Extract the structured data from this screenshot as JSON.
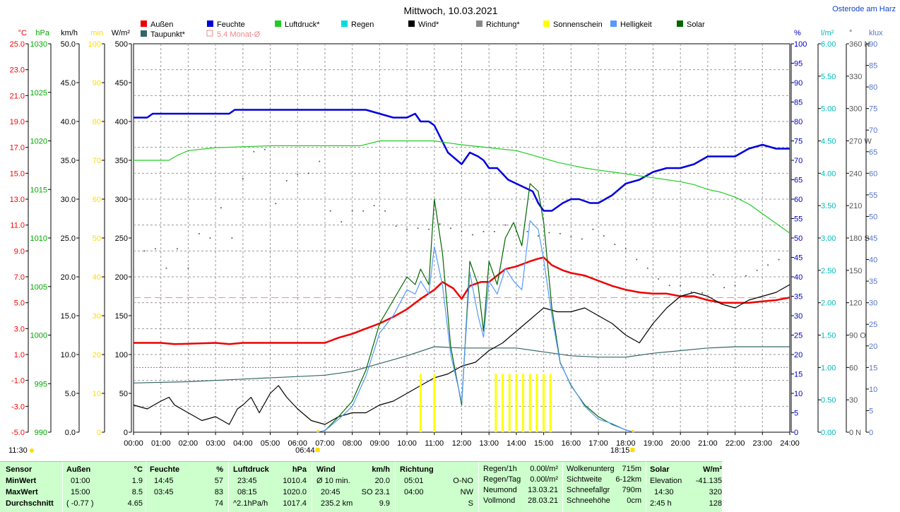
{
  "title": "Mittwoch, 10.03.2021",
  "location": "Osterode am Harz",
  "legend": [
    {
      "label": "Außen",
      "color": "#ee0000"
    },
    {
      "label": "Taupunkt*",
      "color": "#336666"
    },
    {
      "label": "Feuchte",
      "color": "#0000dd"
    },
    {
      "label": "5.4 Monat-Ø",
      "color": "#ee8888",
      "hollow": true
    },
    {
      "label": "Luftdruck*",
      "color": "#22cc22"
    },
    {
      "label": "Regen",
      "color": "#00dddd"
    },
    {
      "label": "Wind*",
      "color": "#000000"
    },
    {
      "label": "Richtung*",
      "color": "#888888"
    },
    {
      "label": "Sonnenschein",
      "color": "#ffff00"
    },
    {
      "label": "Helligkeit",
      "color": "#5599ff"
    },
    {
      "label": "Solar",
      "color": "#006600"
    }
  ],
  "axes_left": [
    {
      "unit": "°C",
      "color": "#ff0000",
      "ticks": [
        "25.0",
        "23.0",
        "21.0",
        "19.0",
        "17.0",
        "15.0",
        "13.0",
        "11.0",
        "9.0",
        "7.0",
        "5.0",
        "3.0",
        "1.0",
        "-1.0",
        "-3.0",
        "-5.0"
      ]
    },
    {
      "unit": "hPa",
      "color": "#00aa00",
      "ticks": [
        "1030",
        "1025",
        "1020",
        "1015",
        "1010",
        "1005",
        "1000",
        "995",
        "990"
      ]
    },
    {
      "unit": "km/h",
      "color": "#000000",
      "ticks": [
        "50.0",
        "45.0",
        "40.0",
        "35.0",
        "30.0",
        "25.0",
        "20.0",
        "15.0",
        "10.0",
        "5.0",
        "0.0"
      ]
    },
    {
      "unit": "min",
      "color": "#ffdd00",
      "ticks": [
        "100",
        "90",
        "80",
        "70",
        "60",
        "50",
        "40",
        "30",
        "20",
        "10",
        "0"
      ]
    },
    {
      "unit": "W/m²",
      "color": "#000000",
      "ticks": [
        "500",
        "450",
        "400",
        "350",
        "300",
        "250",
        "200",
        "150",
        "100",
        "50",
        "0"
      ]
    }
  ],
  "axes_right": [
    {
      "unit": "%",
      "color": "#0000cc",
      "ticks": [
        "100",
        "95",
        "90",
        "85",
        "80",
        "75",
        "70",
        "65",
        "60",
        "55",
        "50",
        "45",
        "40",
        "35",
        "30",
        "25",
        "20",
        "15",
        "10",
        "5",
        "0"
      ]
    },
    {
      "unit": "l/m²",
      "color": "#00bbbb",
      "ticks": [
        "6.00",
        "5.50",
        "5.00",
        "4.50",
        "4.00",
        "3.50",
        "3.00",
        "2.50",
        "2.00",
        "1.50",
        "1.00",
        "0.50",
        "0.00"
      ]
    },
    {
      "unit": "°",
      "color": "#555555",
      "ticks": [
        "360 N",
        "330",
        "300",
        "270 W",
        "240",
        "210",
        "180 S",
        "150",
        "120",
        "90 O",
        "60",
        "30",
        "0 N"
      ]
    },
    {
      "unit": "klux",
      "color": "#5577cc",
      "ticks": [
        "90",
        "85",
        "80",
        "75",
        "70",
        "65",
        "60",
        "55",
        "50",
        "45",
        "40",
        "35",
        "30",
        "25",
        "20",
        "15",
        "10",
        "5",
        "0"
      ]
    }
  ],
  "x_ticks": [
    "00:00",
    "01:00",
    "02:00",
    "03:00",
    "04:00",
    "05:00",
    "06:00",
    "07:00",
    "08:00",
    "09:00",
    "10:00",
    "11:00",
    "12:00",
    "13:00",
    "14:00",
    "15:00",
    "16:00",
    "17:00",
    "18:00",
    "19:00",
    "20:00",
    "21:00",
    "22:00",
    "23:00",
    "24:00"
  ],
  "markers": {
    "now": "11:30",
    "sunrise": "06:44",
    "sunset": "18:15"
  },
  "chart_data": {
    "type": "line",
    "title": "Mittwoch, 10.03.2021",
    "x_unit": "hour",
    "xlim": [
      0,
      24
    ],
    "series": [
      {
        "name": "Außen",
        "unit": "°C",
        "color": "#ee0000",
        "ylim": [
          -5,
          25
        ],
        "x": [
          0,
          1,
          1.5,
          3,
          3.5,
          4,
          7,
          7.5,
          8,
          8.5,
          9,
          9.5,
          10,
          10.5,
          11,
          11.3,
          11.7,
          12,
          12.3,
          12.7,
          13,
          13.3,
          13.6,
          14,
          14.5,
          14.8,
          15,
          15.3,
          15.7,
          16,
          16.5,
          17,
          17.5,
          18,
          18.5,
          19,
          19.5,
          20,
          20.5,
          21,
          21.5,
          22,
          22.5,
          23,
          23.5,
          24
        ],
        "y": [
          1.9,
          1.9,
          1.8,
          1.9,
          1.8,
          1.9,
          1.9,
          2.3,
          2.6,
          3.0,
          3.4,
          3.9,
          4.5,
          5.3,
          6.0,
          6.6,
          6.1,
          5.3,
          6.3,
          6.6,
          6.6,
          7.1,
          7.6,
          7.8,
          8.2,
          8.4,
          8.5,
          7.9,
          7.5,
          7.3,
          7.1,
          6.7,
          6.3,
          6.0,
          5.8,
          5.7,
          5.7,
          5.5,
          5.5,
          5.2,
          5.0,
          5.0,
          5.0,
          5.1,
          5.2,
          5.4
        ]
      },
      {
        "name": "Taupunkt*",
        "unit": "°C",
        "color": "#336666",
        "ylim": [
          -5,
          25
        ],
        "x": [
          0,
          2,
          4,
          6,
          7,
          8,
          9,
          10,
          11,
          12,
          13,
          14,
          15,
          16,
          17,
          18,
          19,
          20,
          21,
          22,
          23,
          24
        ],
        "y": [
          -1.2,
          -1.1,
          -0.9,
          -0.7,
          -0.6,
          -0.3,
          0.3,
          0.9,
          1.6,
          1.5,
          1.5,
          1.5,
          1.2,
          0.9,
          0.8,
          0.8,
          1.1,
          1.3,
          1.5,
          1.6,
          1.6,
          1.6
        ]
      },
      {
        "name": "Feuchte",
        "unit": "%",
        "color": "#0000dd",
        "ylim": [
          0,
          100
        ],
        "x": [
          0,
          0.5,
          0.7,
          3.5,
          3.7,
          8.5,
          9,
          9.5,
          10,
          10.3,
          10.5,
          10.8,
          11,
          11.5,
          12,
          12.3,
          12.6,
          12.8,
          13,
          13.3,
          13.7,
          14,
          14.3,
          14.6,
          14.8,
          15,
          15.3,
          15.7,
          16,
          16.3,
          16.7,
          17,
          17.5,
          18,
          18.5,
          19,
          19.5,
          20,
          20.5,
          21,
          21.5,
          22,
          22.5,
          23,
          23.5,
          24
        ],
        "y": [
          81,
          81,
          82,
          82,
          83,
          83,
          82,
          81,
          81,
          82,
          80,
          80,
          79,
          72,
          69,
          72,
          71,
          70,
          68,
          68,
          65,
          64,
          63,
          62,
          59,
          57,
          57,
          59,
          60,
          60,
          59,
          59,
          61,
          64,
          65,
          67,
          68,
          68,
          69,
          71,
          71,
          71,
          73,
          74,
          73,
          73
        ]
      },
      {
        "name": "Luftdruck*",
        "unit": "hPa",
        "color": "#22cc22",
        "ylim": [
          990,
          1030
        ],
        "x": [
          0,
          1.3,
          1.6,
          2,
          3,
          4,
          5,
          6,
          7,
          8.3,
          9,
          10,
          11,
          11.5,
          12,
          13,
          14,
          14.5,
          15,
          15.5,
          16,
          16.5,
          17,
          17.5,
          18,
          18.5,
          19,
          19.5,
          20,
          20.5,
          21,
          21.5,
          22,
          22.5,
          23,
          23.5,
          24
        ],
        "y": [
          1018,
          1018,
          1018.5,
          1019,
          1019.3,
          1019.4,
          1019.5,
          1019.5,
          1019.5,
          1019.5,
          1020,
          1020,
          1020,
          1019.8,
          1019.6,
          1019.3,
          1019,
          1018.6,
          1018.2,
          1017.8,
          1017.5,
          1017.2,
          1017,
          1016.8,
          1016.6,
          1016.4,
          1016.2,
          1016,
          1015.8,
          1015.5,
          1015,
          1014.7,
          1014.2,
          1013.5,
          1012.5,
          1011.5,
          1010.5
        ]
      },
      {
        "name": "Wind*",
        "unit": "km/h",
        "color": "#000000",
        "ylim": [
          0,
          50
        ],
        "x": [
          0,
          0.5,
          1,
          1.3,
          1.5,
          2,
          2.5,
          3,
          3.5,
          3.8,
          4,
          4.3,
          4.6,
          5,
          5.3,
          5.6,
          6,
          6.5,
          7,
          7.5,
          8,
          8.5,
          9,
          9.5,
          10,
          10.5,
          11,
          11.5,
          12,
          12.5,
          13,
          13.5,
          14,
          14.5,
          15,
          15.5,
          16,
          16.5,
          17,
          17.5,
          18,
          18.5,
          19,
          19.5,
          20,
          20.5,
          21,
          21.5,
          22,
          22.5,
          23,
          23.5,
          24
        ],
        "y": [
          3.5,
          3.0,
          4.0,
          4.5,
          3.5,
          2.5,
          1.5,
          2.0,
          1.0,
          3.0,
          3.5,
          4.5,
          2.5,
          5.0,
          6.0,
          4.5,
          3.0,
          1.5,
          1.0,
          2.0,
          2.5,
          2.5,
          3.5,
          4.0,
          5.0,
          6.0,
          7.0,
          7.5,
          8.5,
          9.0,
          10.5,
          11.5,
          13.0,
          14.5,
          16.0,
          15.5,
          15.5,
          16.0,
          15.0,
          14.0,
          12.5,
          11.5,
          14.0,
          16.0,
          17.5,
          18.0,
          17.5,
          16.5,
          16.0,
          17.0,
          17.5,
          18.0,
          19.0
        ]
      },
      {
        "name": "Richtung*",
        "unit": "°",
        "color": "#555555",
        "ylim": [
          0,
          360
        ],
        "x": [
          0,
          0.4,
          0.8,
          1.2,
          1.6,
          2,
          2.4,
          2.8,
          3.2,
          3.6,
          4,
          4.4,
          4.8,
          5.2,
          5.6,
          6,
          6.4,
          6.8,
          7.2,
          7.6,
          8,
          8.4,
          8.8,
          9.2,
          9.6,
          10,
          10.4,
          10.8,
          11.2,
          11.6,
          12,
          12.4,
          12.8,
          13.2,
          13.6,
          14,
          14.4,
          14.8,
          15.2,
          15.6,
          16,
          16.4,
          16.8,
          17.2,
          17.6,
          18,
          18.4,
          18.8,
          19.2,
          19.6,
          20,
          20.4,
          20.8,
          21.2,
          21.6,
          22,
          22.4,
          22.8,
          23.2,
          23.6
        ],
        "y": [
          150,
          168,
          170,
          152,
          170,
          152,
          184,
          180,
          208,
          180,
          235,
          260,
          262,
          212,
          233,
          239,
          240,
          251,
          205,
          195,
          205,
          205,
          210,
          205,
          191,
          188,
          189,
          188,
          193,
          189,
          186,
          183,
          186,
          186,
          192,
          186,
          186,
          182,
          185,
          184,
          181,
          179,
          188,
          182,
          174,
          170,
          160,
          152,
          142,
          136,
          136,
          130,
          129,
          146,
          134,
          136,
          145,
          150,
          155,
          160
        ]
      },
      {
        "name": "Solar",
        "unit": "W/m²",
        "color": "#006600",
        "ylim": [
          0,
          500
        ],
        "x": [
          6.7,
          7,
          7.5,
          8,
          8.5,
          9,
          9.5,
          10,
          10.3,
          10.5,
          10.8,
          11,
          11.3,
          11.6,
          12,
          12.3,
          12.6,
          12.8,
          13,
          13.3,
          13.6,
          13.9,
          14.2,
          14.5,
          14.8,
          15,
          15.3,
          15.6,
          16,
          16.5,
          17,
          17.5,
          18,
          18.3
        ],
        "y": [
          0,
          2,
          20,
          40,
          80,
          140,
          170,
          200,
          190,
          210,
          190,
          300,
          230,
          110,
          35,
          220,
          190,
          130,
          220,
          190,
          250,
          270,
          240,
          320,
          310,
          270,
          160,
          90,
          60,
          35,
          20,
          10,
          3,
          0
        ]
      },
      {
        "name": "Helligkeit",
        "unit": "klux",
        "color": "#5599ff",
        "ylim": [
          0,
          90
        ],
        "x": [
          6.7,
          7,
          7.5,
          8,
          8.5,
          9,
          9.5,
          10,
          10.3,
          10.5,
          10.8,
          11,
          11.3,
          11.6,
          12,
          12.3,
          12.6,
          12.8,
          13,
          13.3,
          13.6,
          13.9,
          14.2,
          14.5,
          14.8,
          15,
          15.3,
          15.6,
          16,
          16.5,
          17,
          17.5,
          18,
          18.3
        ],
        "y": [
          0,
          0.4,
          3,
          6,
          13,
          23,
          27,
          33,
          32,
          35,
          32,
          43,
          34,
          18,
          7,
          37,
          27,
          22,
          35,
          32,
          38,
          35,
          33,
          49,
          47,
          40,
          27,
          16,
          11,
          6,
          3,
          2,
          0.5,
          0
        ]
      },
      {
        "name": "Sonnenschein",
        "unit": "min",
        "color": "#ffff00",
        "ylim": [
          0,
          100
        ],
        "x": [
          10.5,
          11,
          13.25,
          13.5,
          13.75,
          14,
          14.25,
          14.5,
          14.75,
          15,
          15.25
        ],
        "y": [
          15,
          15,
          15,
          15,
          15,
          15,
          15,
          15,
          15,
          15,
          15
        ]
      }
    ],
    "references": [
      {
        "name": "5.4 Monat-Ø",
        "unit": "°C",
        "value": 5.4,
        "color": "#ee8888"
      },
      {
        "name": "Regen 1.00",
        "unit": "l/m²",
        "value": 1.0,
        "color": "#cc44cc"
      }
    ]
  },
  "table": {
    "headers": {
      "sensor": "Sensor",
      "aussen": "Außen",
      "aussen_unit": "°C",
      "feuchte": "Feuchte",
      "feuchte_unit": "%",
      "luftdruck": "Luftdruck",
      "luftdruck_unit": "hPa",
      "wind": "Wind",
      "wind_unit": "km/h",
      "richtung": "Richtung",
      "solar": "Solar",
      "solar_unit": "W/m²"
    },
    "row_labels": [
      "MinWert",
      "MaxWert",
      "Durchschnitt"
    ],
    "aussen": [
      [
        "01:00",
        "1.9"
      ],
      [
        "15:00",
        "8.5"
      ],
      [
        "( -0.77 )",
        "4.65"
      ]
    ],
    "feuchte": [
      [
        "14:45",
        "57"
      ],
      [
        "03:45",
        "83"
      ],
      [
        "",
        "74"
      ]
    ],
    "luftdruck": [
      [
        "23:45",
        "1010.4"
      ],
      [
        "08:15",
        "1020.0"
      ],
      [
        "^2.1hPa/h",
        "1017.4"
      ]
    ],
    "wind": [
      [
        "Ø 10 min.",
        "20.0"
      ],
      [
        "20:45",
        "SO 23.1"
      ],
      [
        "235.2 km",
        "9.9"
      ]
    ],
    "richtung": [
      [
        "05:01",
        "O-NO"
      ],
      [
        "04:00",
        "NW"
      ],
      [
        "",
        "S"
      ]
    ],
    "regen": [
      [
        "Regen/1h",
        "0.00l/m²"
      ],
      [
        "Regen/Tag",
        "0.00l/m²"
      ],
      [
        "Neumond",
        "13.03.21"
      ],
      [
        "Vollmond",
        "28.03.21"
      ]
    ],
    "wolken": [
      [
        "Wolkenunterg",
        "715m"
      ],
      [
        "Sichtweite",
        "6-12km"
      ],
      [
        "Schneefallgr",
        "790m"
      ],
      [
        "Schneehöhe",
        "0cm"
      ]
    ],
    "solar": [
      [
        "Elevation",
        "-41.135"
      ],
      [
        "14:30",
        "320"
      ],
      [
        "2:45 h",
        "128"
      ]
    ]
  }
}
